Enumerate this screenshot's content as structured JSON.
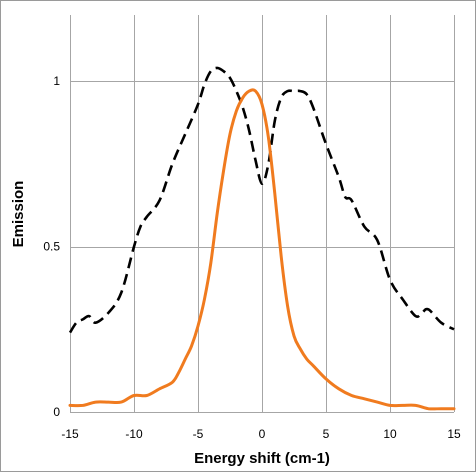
{
  "chart_data": {
    "type": "line",
    "title": "",
    "xlabel": "Energy shift (cm-1)",
    "ylabel": "Emission",
    "xlim": [
      -15,
      15
    ],
    "ylim": [
      0,
      1.2
    ],
    "x_ticks": [
      -15,
      -10,
      -5,
      0,
      5,
      10,
      15
    ],
    "x_tick_labels": [
      "-15",
      "-10",
      "-5",
      "0",
      "5",
      "10",
      "15"
    ],
    "y_ticks": [
      0,
      0.5,
      1
    ],
    "y_tick_labels": [
      "0",
      "0.5",
      "1"
    ],
    "grid": {
      "vertical": true,
      "horizontal": true
    },
    "legend": "none",
    "series": [
      {
        "color": "#000000",
        "line_style": "dashed",
        "x": [
          -15,
          -14.5,
          -14,
          -13.5,
          -13,
          -12,
          -11,
          -10,
          -9.5,
          -9,
          -8,
          -7,
          -6,
          -5,
          -4.5,
          -4,
          -3.5,
          -3,
          -2.5,
          -2,
          -1.5,
          -1,
          -0.5,
          0,
          0.5,
          1,
          1.5,
          2,
          2.5,
          3,
          3.5,
          4,
          5,
          6,
          6.5,
          7,
          8,
          9,
          10,
          11,
          12,
          12.5,
          13,
          14,
          15
        ],
        "y": [
          0.24,
          0.27,
          0.28,
          0.29,
          0.27,
          0.3,
          0.36,
          0.5,
          0.56,
          0.59,
          0.64,
          0.75,
          0.84,
          0.93,
          0.99,
          1.03,
          1.04,
          1.03,
          1.01,
          0.97,
          0.92,
          0.85,
          0.76,
          0.69,
          0.75,
          0.88,
          0.95,
          0.97,
          0.97,
          0.97,
          0.96,
          0.92,
          0.81,
          0.71,
          0.65,
          0.64,
          0.56,
          0.52,
          0.4,
          0.34,
          0.29,
          0.3,
          0.31,
          0.27,
          0.25
        ]
      },
      {
        "color": "#f07b1f",
        "line_style": "solid",
        "x": [
          -15,
          -14,
          -13,
          -12,
          -11,
          -10,
          -9,
          -8,
          -7,
          -6.5,
          -6,
          -5.5,
          -5,
          -4.5,
          -4,
          -3.5,
          -3,
          -2.5,
          -2,
          -1.5,
          -1,
          -0.5,
          0,
          0.5,
          1,
          1.5,
          2,
          2.5,
          3,
          3.5,
          4,
          5,
          6,
          7,
          8,
          9,
          10,
          11,
          12,
          13,
          14,
          15
        ],
        "y": [
          0.02,
          0.02,
          0.03,
          0.03,
          0.03,
          0.05,
          0.05,
          0.07,
          0.09,
          0.12,
          0.16,
          0.2,
          0.26,
          0.34,
          0.45,
          0.6,
          0.73,
          0.84,
          0.91,
          0.95,
          0.97,
          0.97,
          0.93,
          0.83,
          0.66,
          0.47,
          0.32,
          0.23,
          0.19,
          0.16,
          0.14,
          0.1,
          0.07,
          0.05,
          0.04,
          0.03,
          0.02,
          0.02,
          0.02,
          0.01,
          0.01,
          0.01
        ]
      }
    ]
  }
}
